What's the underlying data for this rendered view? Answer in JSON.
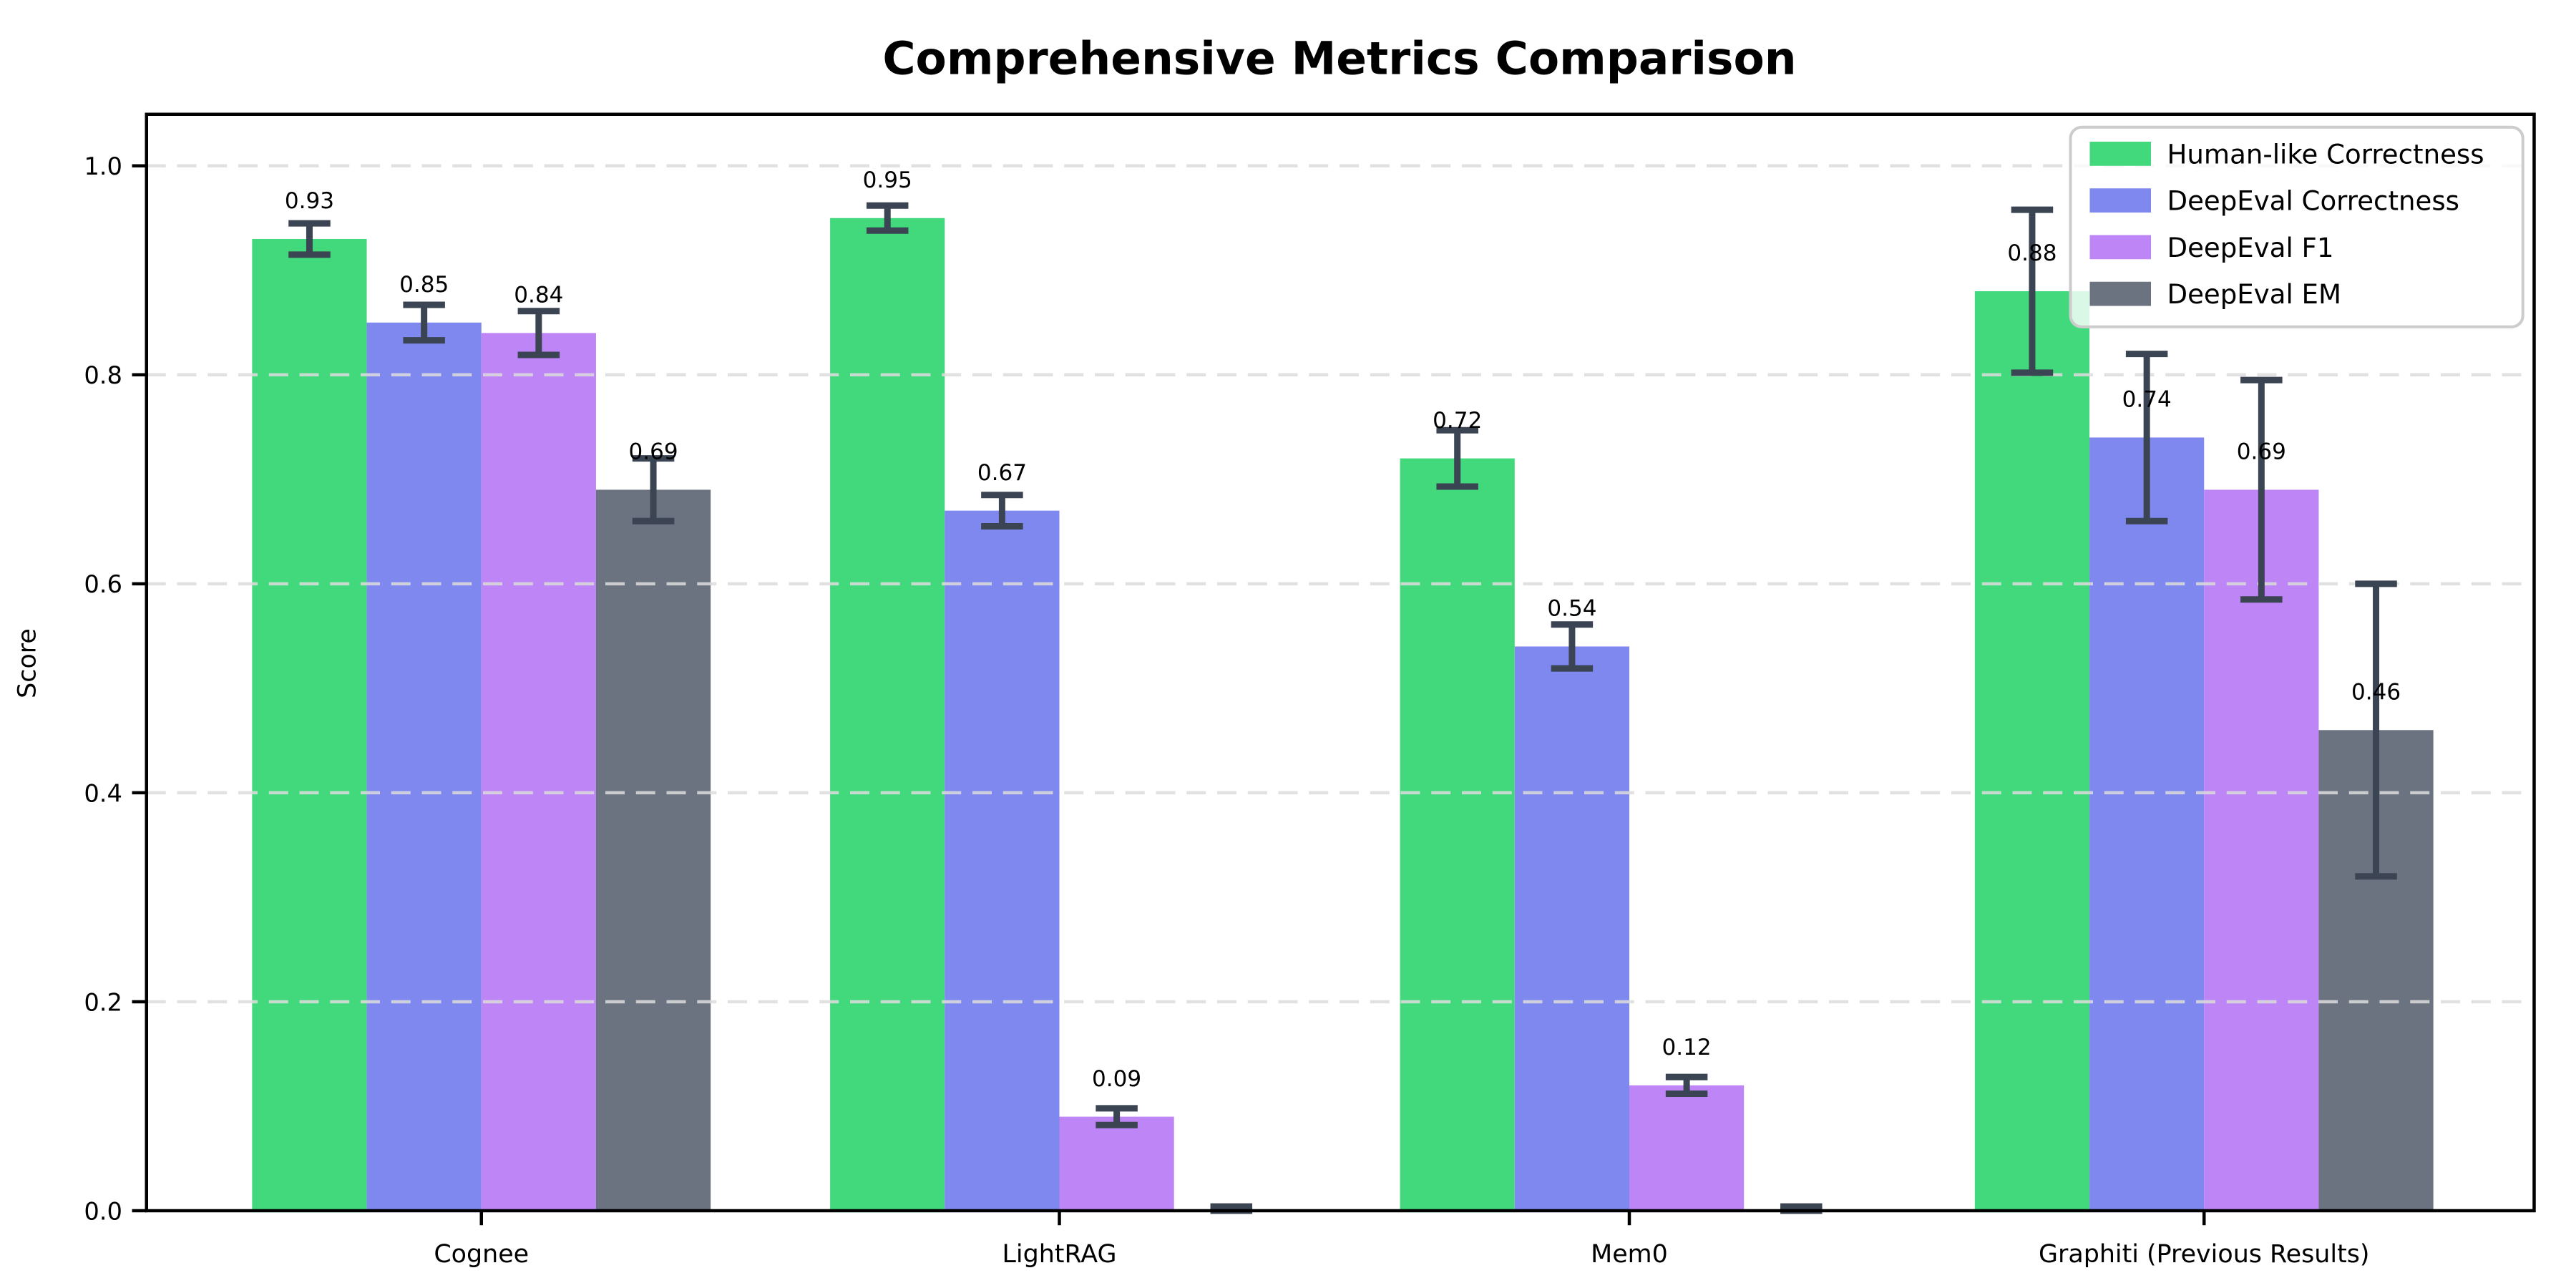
{
  "chart_data": {
    "type": "bar",
    "title": "Comprehensive Metrics Comparison",
    "xlabel": "",
    "ylabel": "Score",
    "ylim": [
      0.0,
      1.05
    ],
    "yticks": [
      0.0,
      0.2,
      0.4,
      0.6,
      0.8,
      1.0
    ],
    "ytick_labels": [
      "0.0",
      "0.2",
      "0.4",
      "0.6",
      "0.8",
      "1.0"
    ],
    "grid": "horizontal-dashed",
    "grid_color": "#dcdcdc",
    "legend_position": "upper-right",
    "error_bar_color": "#3a4452",
    "categories": [
      "Cognee",
      "LightRAG",
      "Mem0",
      "Graphiti (Previous Results)"
    ],
    "series": [
      {
        "name": "Human-like Correctness",
        "color": "#42d97d",
        "values": [
          0.93,
          0.95,
          0.72,
          0.88
        ],
        "errors": [
          0.015,
          0.012,
          0.027,
          0.078
        ],
        "labels": [
          "0.93",
          "0.95",
          "0.72",
          "0.88"
        ]
      },
      {
        "name": "DeepEval Correctness",
        "color": "#7e88ee",
        "values": [
          0.85,
          0.67,
          0.54,
          0.74
        ],
        "errors": [
          0.017,
          0.015,
          0.021,
          0.08
        ],
        "labels": [
          "0.85",
          "0.67",
          "0.54",
          "0.74"
        ]
      },
      {
        "name": "DeepEval F1",
        "color": "#bd85f5",
        "values": [
          0.84,
          0.09,
          0.12,
          0.69
        ],
        "errors": [
          0.021,
          0.008,
          0.008,
          0.105
        ],
        "labels": [
          "0.84",
          "0.09",
          "0.12",
          "0.69"
        ]
      },
      {
        "name": "DeepEval EM",
        "color": "#6b7280",
        "values": [
          0.69,
          0.0,
          0.0,
          0.46
        ],
        "errors": [
          0.03,
          0.004,
          0.004,
          0.14
        ],
        "labels": [
          "0.69",
          "",
          "",
          "0.46"
        ]
      }
    ]
  }
}
